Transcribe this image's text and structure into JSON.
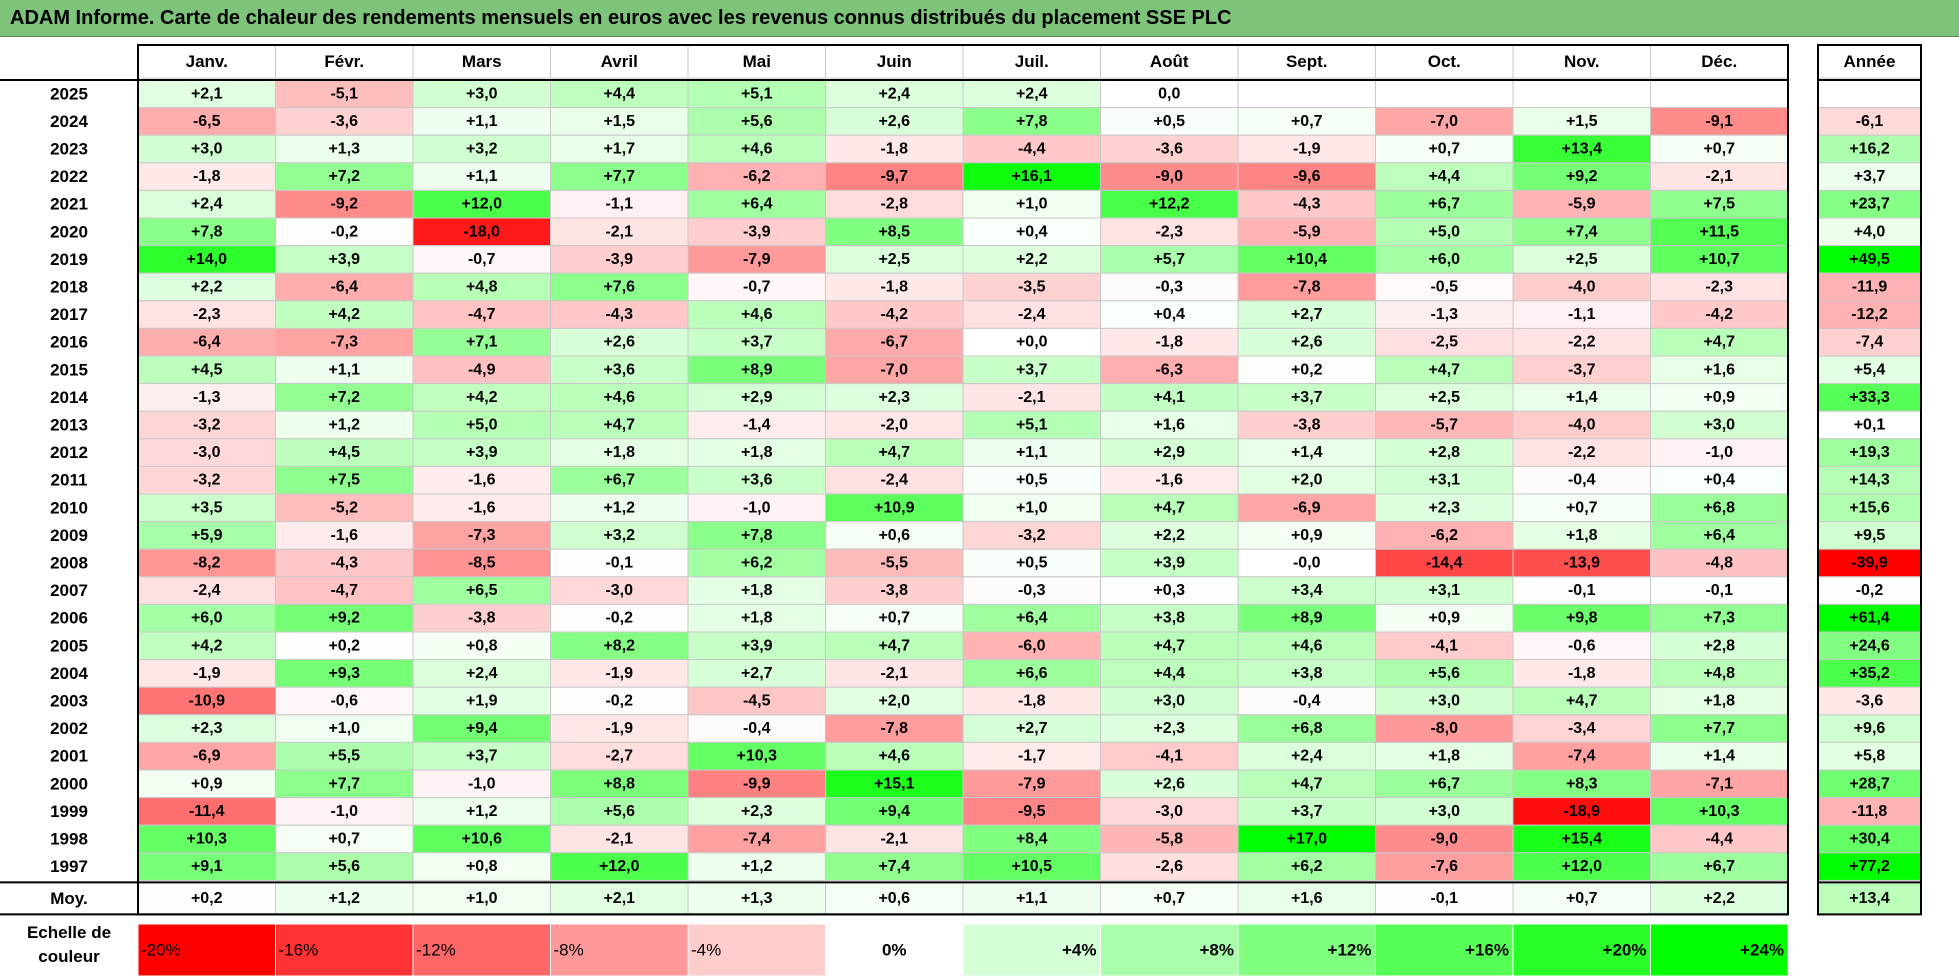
{
  "title": "ADAM Informe. Carte de chaleur des rendements mensuels en euros avec les revenus connus distribués du placement SSE PLC",
  "chart_data": {
    "type": "heatmap",
    "title": "ADAM Informe. Carte de chaleur des rendements mensuels en euros avec les revenus connus distribués du placement SSE PLC",
    "months": [
      "Janv.",
      "Févr.",
      "Mars",
      "Avril",
      "Mai",
      "Juin",
      "Juil.",
      "Août",
      "Sept.",
      "Oct.",
      "Nov.",
      "Déc."
    ],
    "year_header": "Année",
    "rows": [
      {
        "year": "2025",
        "values": [
          "+2,1",
          "-5,1",
          "+3,0",
          "+4,4",
          "+5,1",
          "+2,4",
          "+2,4",
          "0,0",
          "",
          "",
          "",
          ""
        ],
        "annual": ""
      },
      {
        "year": "2024",
        "values": [
          "-6,5",
          "-3,6",
          "+1,1",
          "+1,5",
          "+5,6",
          "+2,6",
          "+7,8",
          "+0,5",
          "+0,7",
          "-7,0",
          "+1,5",
          "-9,1"
        ],
        "annual": "-6,1"
      },
      {
        "year": "2023",
        "values": [
          "+3,0",
          "+1,3",
          "+3,2",
          "+1,7",
          "+4,6",
          "-1,8",
          "-4,4",
          "-3,6",
          "-1,9",
          "+0,7",
          "+13,4",
          "+0,7"
        ],
        "annual": "+16,2"
      },
      {
        "year": "2022",
        "values": [
          "-1,8",
          "+7,2",
          "+1,1",
          "+7,7",
          "-6,2",
          "-9,7",
          "+16,1",
          "-9,0",
          "-9,6",
          "+4,4",
          "+9,2",
          "-2,1"
        ],
        "annual": "+3,7"
      },
      {
        "year": "2021",
        "values": [
          "+2,4",
          "-9,2",
          "+12,0",
          "-1,1",
          "+6,4",
          "-2,8",
          "+1,0",
          "+12,2",
          "-4,3",
          "+6,7",
          "-5,9",
          "+7,5"
        ],
        "annual": "+23,7"
      },
      {
        "year": "2020",
        "values": [
          "+7,8",
          "-0,2",
          "-18,0",
          "-2,1",
          "-3,9",
          "+8,5",
          "+0,4",
          "-2,3",
          "-5,9",
          "+5,0",
          "+7,4",
          "+11,5"
        ],
        "annual": "+4,0"
      },
      {
        "year": "2019",
        "values": [
          "+14,0",
          "+3,9",
          "-0,7",
          "-3,9",
          "-7,9",
          "+2,5",
          "+2,2",
          "+5,7",
          "+10,4",
          "+6,0",
          "+2,5",
          "+10,7"
        ],
        "annual": "+49,5"
      },
      {
        "year": "2018",
        "values": [
          "+2,2",
          "-6,4",
          "+4,8",
          "+7,6",
          "-0,7",
          "-1,8",
          "-3,5",
          "-0,3",
          "-7,8",
          "-0,5",
          "-4,0",
          "-2,3"
        ],
        "annual": "-11,9"
      },
      {
        "year": "2017",
        "values": [
          "-2,3",
          "+4,2",
          "-4,7",
          "-4,3",
          "+4,6",
          "-4,2",
          "-2,4",
          "+0,4",
          "+2,7",
          "-1,3",
          "-1,1",
          "-4,2"
        ],
        "annual": "-12,2"
      },
      {
        "year": "2016",
        "values": [
          "-6,4",
          "-7,3",
          "+7,1",
          "+2,6",
          "+3,7",
          "-6,7",
          "+0,0",
          "-1,8",
          "+2,6",
          "-2,5",
          "-2,2",
          "+4,7"
        ],
        "annual": "-7,4"
      },
      {
        "year": "2015",
        "values": [
          "+4,5",
          "+1,1",
          "-4,9",
          "+3,6",
          "+8,9",
          "-7,0",
          "+3,7",
          "-6,3",
          "+0,2",
          "+4,7",
          "-3,7",
          "+1,6"
        ],
        "annual": "+5,4"
      },
      {
        "year": "2014",
        "values": [
          "-1,3",
          "+7,2",
          "+4,2",
          "+4,6",
          "+2,9",
          "+2,3",
          "-2,1",
          "+4,1",
          "+3,7",
          "+2,5",
          "+1,4",
          "+0,9"
        ],
        "annual": "+33,3"
      },
      {
        "year": "2013",
        "values": [
          "-3,2",
          "+1,2",
          "+5,0",
          "+4,7",
          "-1,4",
          "-2,0",
          "+5,1",
          "+1,6",
          "-3,8",
          "-5,7",
          "-4,0",
          "+3,0"
        ],
        "annual": "+0,1"
      },
      {
        "year": "2012",
        "values": [
          "-3,0",
          "+4,5",
          "+3,9",
          "+1,8",
          "+1,8",
          "+4,7",
          "+1,1",
          "+2,9",
          "+1,4",
          "+2,8",
          "-2,2",
          "-1,0"
        ],
        "annual": "+19,3"
      },
      {
        "year": "2011",
        "values": [
          "-3,2",
          "+7,5",
          "-1,6",
          "+6,7",
          "+3,6",
          "-2,4",
          "+0,5",
          "-1,6",
          "+2,0",
          "+3,1",
          "-0,4",
          "+0,4"
        ],
        "annual": "+14,3"
      },
      {
        "year": "2010",
        "values": [
          "+3,5",
          "-5,2",
          "-1,6",
          "+1,2",
          "-1,0",
          "+10,9",
          "+1,0",
          "+4,7",
          "-6,9",
          "+2,3",
          "+0,7",
          "+6,8"
        ],
        "annual": "+15,6"
      },
      {
        "year": "2009",
        "values": [
          "+5,9",
          "-1,6",
          "-7,3",
          "+3,2",
          "+7,8",
          "+0,6",
          "-3,2",
          "+2,2",
          "+0,9",
          "-6,2",
          "+1,8",
          "+6,4"
        ],
        "annual": "+9,5"
      },
      {
        "year": "2008",
        "values": [
          "-8,2",
          "-4,3",
          "-8,5",
          "-0,1",
          "+6,2",
          "-5,5",
          "+0,5",
          "+3,9",
          "-0,0",
          "-14,4",
          "-13,9",
          "-4,8"
        ],
        "annual": "-39,9"
      },
      {
        "year": "2007",
        "values": [
          "-2,4",
          "-4,7",
          "+6,5",
          "-3,0",
          "+1,8",
          "-3,8",
          "-0,3",
          "+0,3",
          "+3,4",
          "+3,1",
          "-0,1",
          "-0,1"
        ],
        "annual": "-0,2"
      },
      {
        "year": "2006",
        "values": [
          "+6,0",
          "+9,2",
          "-3,8",
          "-0,2",
          "+1,8",
          "+0,7",
          "+6,4",
          "+3,8",
          "+8,9",
          "+0,9",
          "+9,8",
          "+7,3"
        ],
        "annual": "+61,4"
      },
      {
        "year": "2005",
        "values": [
          "+4,2",
          "+0,2",
          "+0,8",
          "+8,2",
          "+3,9",
          "+4,7",
          "-6,0",
          "+4,7",
          "+4,6",
          "-4,1",
          "-0,6",
          "+2,8"
        ],
        "annual": "+24,6"
      },
      {
        "year": "2004",
        "values": [
          "-1,9",
          "+9,3",
          "+2,4",
          "-1,9",
          "+2,7",
          "-2,1",
          "+6,6",
          "+4,4",
          "+3,8",
          "+5,6",
          "-1,8",
          "+4,8"
        ],
        "annual": "+35,2"
      },
      {
        "year": "2003",
        "values": [
          "-10,9",
          "-0,6",
          "+1,9",
          "-0,2",
          "-4,5",
          "+2,0",
          "-1,8",
          "+3,0",
          "-0,4",
          "+3,0",
          "+4,7",
          "+1,8"
        ],
        "annual": "-3,6"
      },
      {
        "year": "2002",
        "values": [
          "+2,3",
          "+1,0",
          "+9,4",
          "-1,9",
          "-0,4",
          "-7,8",
          "+2,7",
          "+2,3",
          "+6,8",
          "-8,0",
          "-3,4",
          "+7,7"
        ],
        "annual": "+9,6"
      },
      {
        "year": "2001",
        "values": [
          "-6,9",
          "+5,5",
          "+3,7",
          "-2,7",
          "+10,3",
          "+4,6",
          "-1,7",
          "-4,1",
          "+2,4",
          "+1,8",
          "-7,4",
          "+1,4"
        ],
        "annual": "+5,8"
      },
      {
        "year": "2000",
        "values": [
          "+0,9",
          "+7,7",
          "-1,0",
          "+8,8",
          "-9,9",
          "+15,1",
          "-7,9",
          "+2,6",
          "+4,7",
          "+6,7",
          "+8,3",
          "-7,1"
        ],
        "annual": "+28,7"
      },
      {
        "year": "1999",
        "values": [
          "-11,4",
          "-1,0",
          "+1,2",
          "+5,6",
          "+2,3",
          "+9,4",
          "-9,5",
          "-3,0",
          "+3,7",
          "+3,0",
          "-18,9",
          "+10,3"
        ],
        "annual": "-11,8"
      },
      {
        "year": "1998",
        "values": [
          "+10,3",
          "+0,7",
          "+10,6",
          "-2,1",
          "-7,4",
          "-2,1",
          "+8,4",
          "-5,8",
          "+17,0",
          "-9,0",
          "+15,4",
          "-4,4"
        ],
        "annual": "+30,4"
      },
      {
        "year": "1997",
        "values": [
          "+9,1",
          "+5,6",
          "+0,8",
          "+12,0",
          "+1,2",
          "+7,4",
          "+10,5",
          "-2,6",
          "+6,2",
          "-7,6",
          "+12,0",
          "+6,7"
        ],
        "annual": "+77,2"
      }
    ],
    "average": {
      "label": "Moy.",
      "values": [
        "+0,2",
        "+1,2",
        "+1,0",
        "+2,1",
        "+1,3",
        "+0,6",
        "+1,1",
        "+0,7",
        "+1,6",
        "-0,1",
        "+0,7",
        "+2,2"
      ],
      "annual": "+13,4"
    },
    "scale": {
      "label": "Echelle de couleur",
      "steps": [
        "-20%",
        "-16%",
        "-12%",
        "-8%",
        "-4%",
        "0%",
        "+4%",
        "+8%",
        "+12%",
        "+16%",
        "+20%",
        "+24%"
      ]
    },
    "colors": {
      "negative": "#ff0000",
      "neutral": "#ffffff",
      "positive": "#00ff00",
      "title_bar": "#7dc47a"
    }
  }
}
